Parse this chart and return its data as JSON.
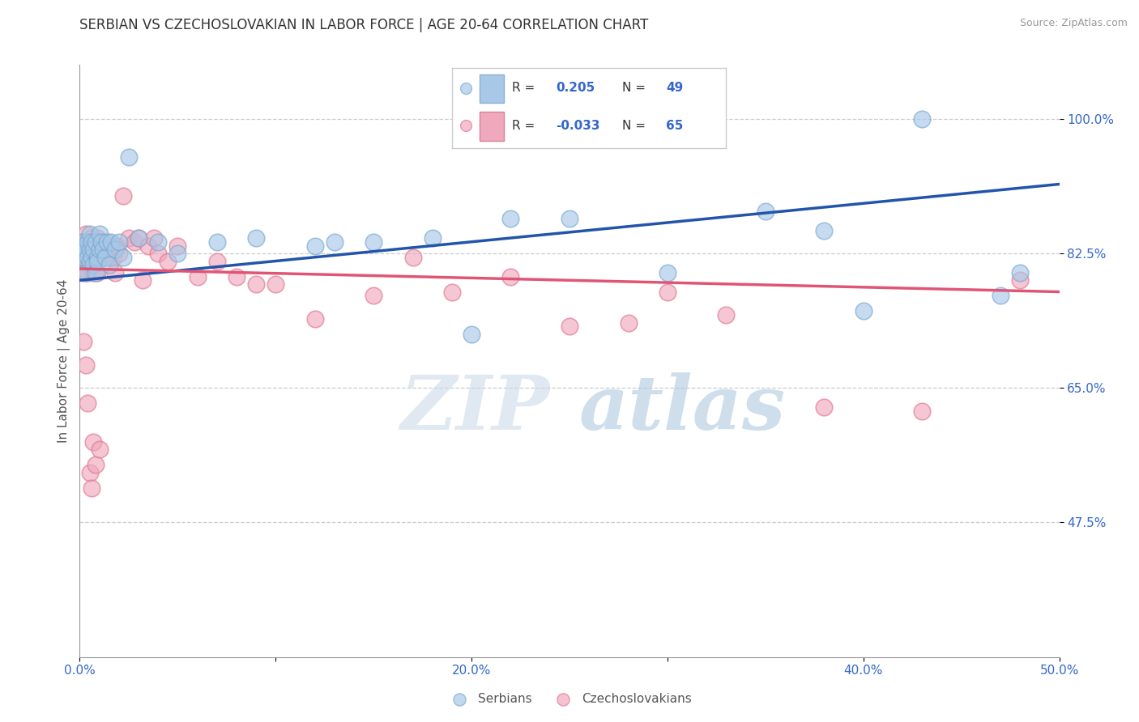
{
  "title": "SERBIAN VS CZECHOSLOVAKIAN IN LABOR FORCE | AGE 20-64 CORRELATION CHART",
  "source_text": "Source: ZipAtlas.com",
  "ylabel": "In Labor Force | Age 20-64",
  "xlim": [
    0.0,
    0.5
  ],
  "ylim": [
    0.3,
    1.07
  ],
  "xticks": [
    0.0,
    0.1,
    0.2,
    0.3,
    0.4,
    0.5
  ],
  "xticklabels": [
    "0.0%",
    "",
    "20.0%",
    "",
    "40.0%",
    "50.0%"
  ],
  "yticks": [
    0.475,
    0.65,
    0.825,
    1.0
  ],
  "yticklabels": [
    "47.5%",
    "65.0%",
    "82.5%",
    "100.0%"
  ],
  "blue_R": 0.205,
  "blue_N": 49,
  "pink_R": -0.033,
  "pink_N": 65,
  "blue_color": "#A8C8E8",
  "pink_color": "#F0A8BC",
  "blue_edge_color": "#7AAAD0",
  "pink_edge_color": "#E07890",
  "blue_line_color": "#2255AA",
  "pink_line_color": "#E05575",
  "watermark_zip": "ZIP",
  "watermark_atlas": "atlas",
  "legend_label_blue": "Serbians",
  "legend_label_pink": "Czechoslovakians",
  "title_fontsize": 12,
  "tick_fontsize": 11,
  "blue_scatter_x": [
    0.001,
    0.002,
    0.002,
    0.003,
    0.003,
    0.004,
    0.004,
    0.005,
    0.005,
    0.005,
    0.006,
    0.006,
    0.007,
    0.007,
    0.008,
    0.008,
    0.009,
    0.009,
    0.01,
    0.01,
    0.011,
    0.012,
    0.013,
    0.014,
    0.015,
    0.016,
    0.018,
    0.02,
    0.022,
    0.025,
    0.03,
    0.04,
    0.05,
    0.07,
    0.09,
    0.12,
    0.15,
    0.18,
    0.2,
    0.25,
    0.3,
    0.35,
    0.4,
    0.43,
    0.48,
    0.13,
    0.22,
    0.38,
    0.47
  ],
  "blue_scatter_y": [
    0.835,
    0.82,
    0.84,
    0.8,
    0.83,
    0.82,
    0.84,
    0.815,
    0.83,
    0.85,
    0.82,
    0.84,
    0.81,
    0.83,
    0.8,
    0.84,
    0.82,
    0.815,
    0.83,
    0.85,
    0.84,
    0.83,
    0.82,
    0.84,
    0.81,
    0.84,
    0.83,
    0.84,
    0.82,
    0.95,
    0.845,
    0.84,
    0.825,
    0.84,
    0.845,
    0.835,
    0.84,
    0.845,
    0.72,
    0.87,
    0.8,
    0.88,
    0.75,
    1.0,
    0.8,
    0.84,
    0.87,
    0.855,
    0.77
  ],
  "pink_scatter_x": [
    0.001,
    0.001,
    0.002,
    0.002,
    0.003,
    0.003,
    0.004,
    0.004,
    0.005,
    0.005,
    0.006,
    0.006,
    0.007,
    0.007,
    0.008,
    0.008,
    0.009,
    0.009,
    0.01,
    0.01,
    0.011,
    0.012,
    0.013,
    0.014,
    0.015,
    0.016,
    0.017,
    0.018,
    0.019,
    0.02,
    0.022,
    0.025,
    0.028,
    0.03,
    0.032,
    0.035,
    0.038,
    0.04,
    0.045,
    0.05,
    0.06,
    0.07,
    0.08,
    0.09,
    0.1,
    0.12,
    0.15,
    0.17,
    0.19,
    0.22,
    0.25,
    0.28,
    0.3,
    0.33,
    0.38,
    0.43,
    0.48,
    0.002,
    0.003,
    0.004,
    0.005,
    0.006,
    0.007,
    0.008,
    0.01
  ],
  "pink_scatter_y": [
    0.82,
    0.84,
    0.8,
    0.83,
    0.85,
    0.82,
    0.84,
    0.8,
    0.83,
    0.815,
    0.82,
    0.845,
    0.8,
    0.825,
    0.83,
    0.815,
    0.845,
    0.8,
    0.835,
    0.82,
    0.825,
    0.84,
    0.82,
    0.835,
    0.82,
    0.835,
    0.82,
    0.8,
    0.835,
    0.825,
    0.9,
    0.845,
    0.84,
    0.845,
    0.79,
    0.835,
    0.845,
    0.825,
    0.815,
    0.835,
    0.795,
    0.815,
    0.795,
    0.785,
    0.785,
    0.74,
    0.77,
    0.82,
    0.775,
    0.795,
    0.73,
    0.735,
    0.775,
    0.745,
    0.625,
    0.62,
    0.79,
    0.71,
    0.68,
    0.63,
    0.54,
    0.52,
    0.58,
    0.55,
    0.57
  ],
  "blue_line_x": [
    0.0,
    0.5
  ],
  "blue_line_y": [
    0.79,
    0.915
  ],
  "pink_line_x": [
    0.0,
    0.5
  ],
  "pink_line_y": [
    0.805,
    0.775
  ]
}
